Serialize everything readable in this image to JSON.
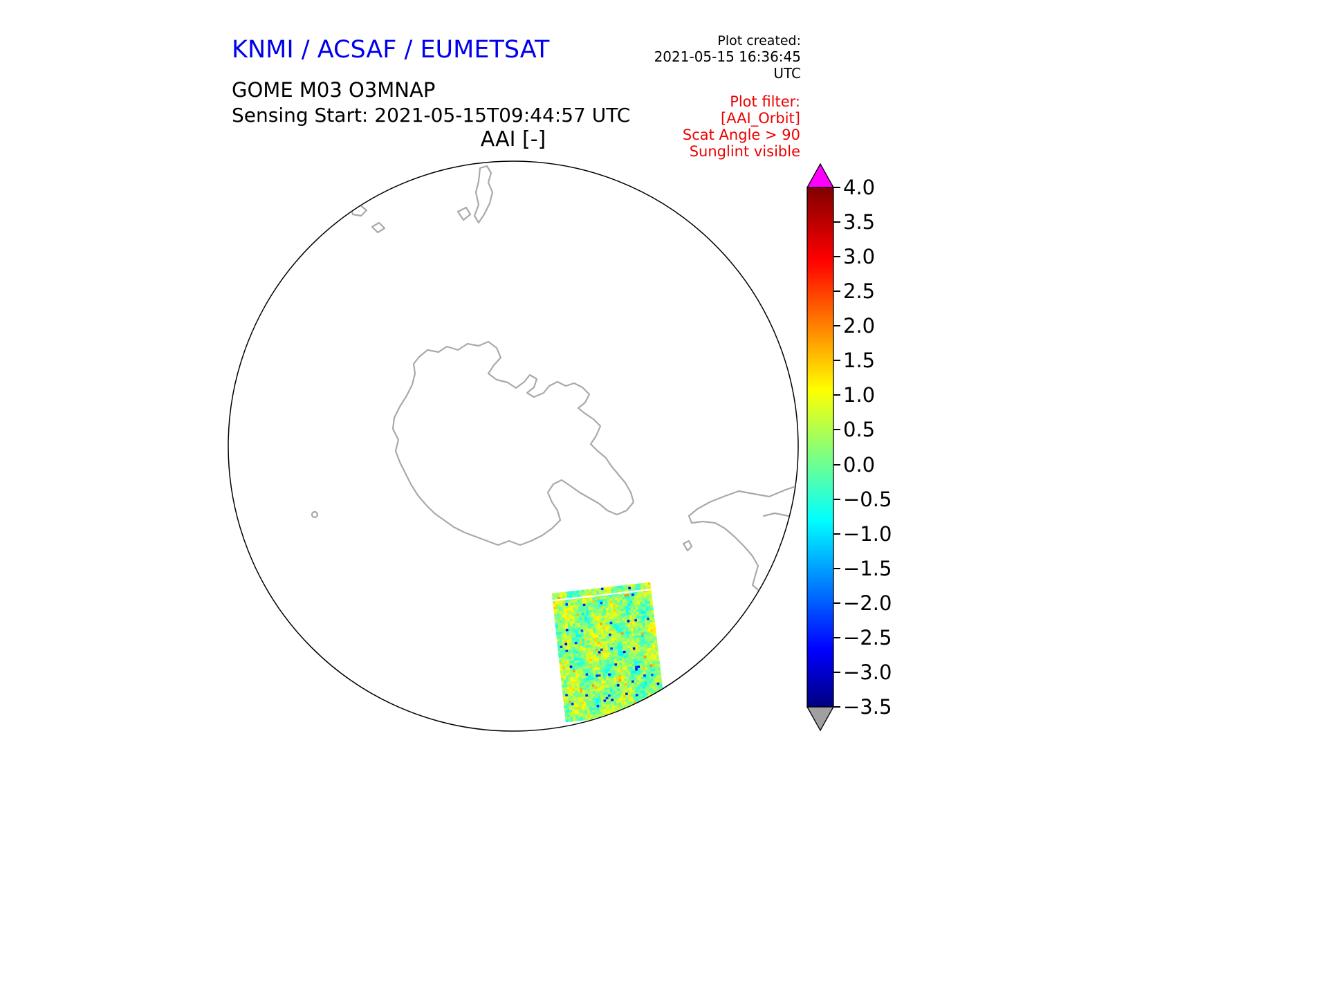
{
  "header": {
    "org_title": "KNMI / ACSAF / EUMETSAT",
    "plot_created_label": "Plot created:",
    "plot_created_value": "2021-05-15 16:36:45 UTC",
    "product_title": "GOME M03 O3MNAP",
    "sensing_start": "Sensing Start: 2021-05-15T09:44:57 UTC"
  },
  "plot": {
    "title": "AAI [-]"
  },
  "filter": {
    "lines": [
      "Plot filter:",
      "[AAI_Orbit]",
      "Scat Angle > 90",
      "Sunglint visible"
    ]
  },
  "colors": {
    "org_title_blue": "#0000ee",
    "filter_red": "#ee0000",
    "coastline_gray": "#a9a9a9",
    "map_outline": "#000000",
    "colorbar_over": "#ff00ff",
    "colorbar_under": "#a0a0a0"
  },
  "chart_data": {
    "type": "heatmap",
    "title": "AAI [-]",
    "units": "-",
    "projection": "South polar stereographic (Antarctica centered)",
    "colorbar": {
      "min": -3.5,
      "max": 4.0,
      "tick_labels": [
        "4.0",
        "3.5",
        "3.0",
        "2.5",
        "2.0",
        "1.5",
        "1.0",
        "0.5",
        "0.0",
        "−0.5",
        "−1.0",
        "−1.5",
        "−2.0",
        "−2.5",
        "−3.0",
        "−3.5"
      ],
      "tick_values": [
        4.0,
        3.5,
        3.0,
        2.5,
        2.0,
        1.5,
        1.0,
        0.5,
        0.0,
        -0.5,
        -1.0,
        -1.5,
        -2.0,
        -2.5,
        -3.0,
        -3.5
      ],
      "colormap": "jet",
      "over_color": "#ff00ff",
      "under_color": "#a0a0a0",
      "orientation": "vertical",
      "extend": "both"
    },
    "swath": {
      "description": "Single GOME-2 (Metop-C) orbit AAI swath in the south-east sector of the polar map; speckled field dominated by values near 0 (green/cyan) with yellow-orange streaks and scattered blue minima",
      "typical_value": 0.25,
      "approx_value_range": [
        -2.8,
        1.9
      ],
      "seed": 42,
      "grid_cols": 40,
      "grid_rows": 56
    }
  }
}
